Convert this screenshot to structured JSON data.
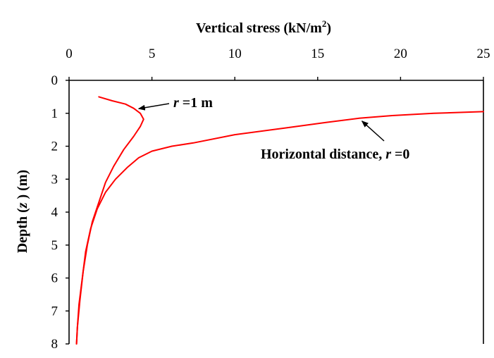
{
  "chart_data": {
    "type": "line",
    "title": "",
    "xlabel": {
      "prefix": "Vertical stress (kN/m",
      "superscript": "2",
      "suffix": ")"
    },
    "ylabel": {
      "prefix": "Depth (",
      "italic": "z",
      "suffix": " ) (m)"
    },
    "xlim": [
      0,
      25
    ],
    "ylim": [
      0,
      8
    ],
    "x_axis_position": "top",
    "y_axis_inverted": true,
    "x_ticks": [
      "0",
      "5",
      "10",
      "15",
      "20",
      "25"
    ],
    "y_ticks": [
      "0",
      "1",
      "2",
      "3",
      "4",
      "5",
      "6",
      "7",
      "8"
    ],
    "grid": false,
    "line_color": "#ff0000",
    "series": [
      {
        "label_id": "r0",
        "points": [
          [
            25.0,
            0.95
          ],
          [
            22.0,
            1.0
          ],
          [
            19.5,
            1.07
          ],
          [
            17.5,
            1.15
          ],
          [
            15.5,
            1.28
          ],
          [
            13.0,
            1.45
          ],
          [
            10.0,
            1.65
          ],
          [
            7.5,
            1.9
          ],
          [
            6.2,
            2.0
          ],
          [
            5.0,
            2.15
          ],
          [
            4.2,
            2.35
          ],
          [
            3.5,
            2.65
          ],
          [
            2.8,
            3.0
          ],
          [
            2.2,
            3.4
          ],
          [
            1.7,
            3.9
          ],
          [
            1.3,
            4.5
          ],
          [
            1.0,
            5.2
          ],
          [
            0.8,
            6.0
          ],
          [
            0.6,
            6.8
          ],
          [
            0.5,
            7.5
          ],
          [
            0.45,
            8.0
          ]
        ]
      },
      {
        "label_id": "r1",
        "points": [
          [
            1.8,
            0.5
          ],
          [
            2.6,
            0.62
          ],
          [
            3.4,
            0.72
          ],
          [
            3.9,
            0.85
          ],
          [
            4.3,
            1.0
          ],
          [
            4.5,
            1.18
          ],
          [
            4.3,
            1.4
          ],
          [
            3.9,
            1.7
          ],
          [
            3.3,
            2.1
          ],
          [
            2.7,
            2.6
          ],
          [
            2.2,
            3.1
          ],
          [
            1.8,
            3.7
          ],
          [
            1.4,
            4.3
          ],
          [
            1.1,
            5.0
          ],
          [
            0.85,
            5.8
          ],
          [
            0.65,
            6.7
          ],
          [
            0.5,
            7.5
          ],
          [
            0.45,
            8.0
          ]
        ]
      }
    ],
    "annotations": [
      {
        "id": "r1",
        "text_parts": [
          {
            "text": "r",
            "italic": true
          },
          {
            "text": " =1 m",
            "italic": false
          }
        ],
        "arrow_tip": [
          4.2,
          0.86
        ]
      },
      {
        "id": "r0",
        "text_parts": [
          {
            "text": "Horizontal distance, ",
            "italic": false
          },
          {
            "text": "r",
            "italic": true
          },
          {
            "text": " =0",
            "italic": false
          }
        ],
        "arrow_tip": [
          17.5,
          1.15
        ]
      }
    ]
  }
}
